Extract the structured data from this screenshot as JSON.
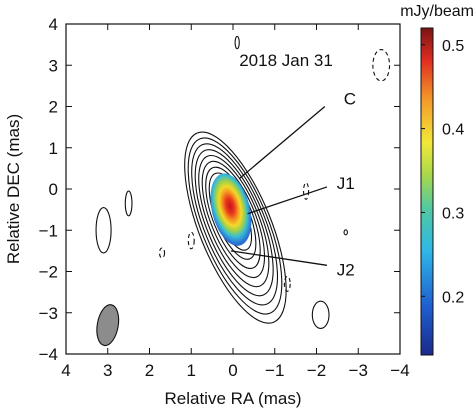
{
  "chart_data": {
    "type": "contour",
    "epoch_label": "2018 Jan 31",
    "xlabel": "Relative RA (mas)",
    "ylabel": "Relative DEC (mas)",
    "xlim": [
      4,
      -4
    ],
    "ylim": [
      -4,
      4
    ],
    "x_ticks": [
      4,
      3,
      2,
      1,
      0,
      -1,
      -2,
      -3,
      -4
    ],
    "y_ticks": [
      4,
      3,
      2,
      1,
      0,
      -1,
      -2,
      -3,
      -4
    ],
    "colorbar": {
      "title": "mJy/beam",
      "ticks": [
        0.5,
        0.4,
        0.3,
        0.2
      ],
      "range": [
        0.13,
        0.52
      ],
      "colormap": "jet"
    },
    "components": [
      {
        "label": "C",
        "x": -0.15,
        "y": 0.25
      },
      {
        "label": "J1",
        "x": -0.35,
        "y": -0.6
      },
      {
        "label": "J2",
        "x": 0.05,
        "y": -1.5
      }
    ],
    "contour_center": {
      "x": 0.05,
      "y": -0.5
    },
    "contour_levels": 11,
    "beam": {
      "x": 3.0,
      "y": -3.3,
      "major_mas": 1.0,
      "minor_mas": 0.5,
      "pa_deg": 10
    },
    "intensity_peak": {
      "x": 0.05,
      "y": -0.5,
      "value": 0.51
    }
  }
}
